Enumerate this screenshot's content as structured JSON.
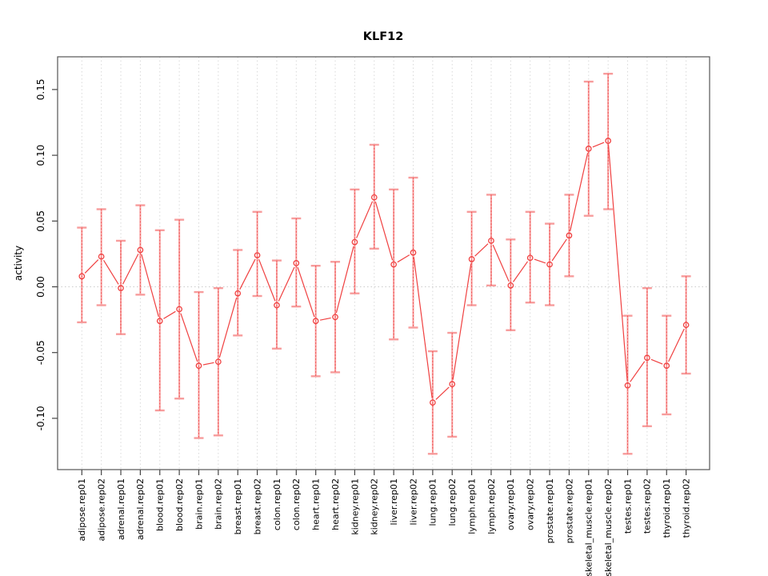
{
  "chart_data": {
    "type": "scatter",
    "subtype": "points-with-error-bars",
    "title": "KLF12",
    "xlabel": "",
    "ylabel": "activity",
    "ylim": [
      -0.139,
      0.175
    ],
    "yticks": [
      0.15,
      0.1,
      0.05,
      0.0,
      -0.05,
      -0.1
    ],
    "ytick_labels": [
      "0.15",
      "0.10",
      "0.05",
      "0.00",
      "-0.05",
      "-0.10"
    ],
    "grid": "vertical dotted gridline at every category; horizontal dotted line at zero only",
    "legend": "none",
    "categories": [
      "adipose.rep01",
      "adipose.rep02",
      "adrenal.rep01",
      "adrenal.rep02",
      "blood.rep01",
      "blood.rep02",
      "brain.rep01",
      "brain.rep02",
      "breast.rep01",
      "breast.rep02",
      "colon.rep01",
      "colon.rep02",
      "heart.rep01",
      "heart.rep02",
      "kidney.rep01",
      "kidney.rep02",
      "liver.rep01",
      "liver.rep02",
      "lung.rep01",
      "lung.rep02",
      "lymph.rep01",
      "lymph.rep02",
      "ovary.rep01",
      "ovary.rep02",
      "prostate.rep01",
      "prostate.rep02",
      "skeletal_muscle.rep01",
      "skeletal_muscle.rep02",
      "testes.rep01",
      "testes.rep02",
      "thyroid.rep01",
      "thyroid.rep02"
    ],
    "values": [
      0.008,
      0.023,
      -0.001,
      0.028,
      -0.026,
      -0.017,
      -0.06,
      -0.057,
      -0.005,
      0.024,
      -0.014,
      0.018,
      -0.026,
      -0.023,
      0.034,
      0.068,
      0.017,
      0.026,
      -0.088,
      -0.074,
      0.021,
      0.035,
      0.001,
      0.022,
      0.017,
      0.039,
      0.105,
      0.111,
      -0.075,
      -0.054,
      -0.06,
      -0.029
    ],
    "error_low": [
      -0.027,
      -0.014,
      -0.036,
      -0.006,
      -0.094,
      -0.085,
      -0.115,
      -0.113,
      -0.037,
      -0.007,
      -0.047,
      -0.015,
      -0.068,
      -0.065,
      -0.005,
      0.029,
      -0.04,
      -0.031,
      -0.127,
      -0.114,
      -0.014,
      0.001,
      -0.033,
      -0.012,
      -0.014,
      0.008,
      0.054,
      0.059,
      -0.127,
      -0.106,
      -0.097,
      -0.066
    ],
    "error_high": [
      0.045,
      0.059,
      0.035,
      0.062,
      0.043,
      0.051,
      -0.004,
      -0.001,
      0.028,
      0.057,
      0.02,
      0.052,
      0.016,
      0.019,
      0.074,
      0.108,
      0.074,
      0.083,
      -0.049,
      -0.035,
      0.057,
      0.07,
      0.036,
      0.057,
      0.048,
      0.07,
      0.156,
      0.162,
      -0.022,
      -0.001,
      -0.022,
      0.008
    ],
    "colors": {
      "point_and_line": "#f04040",
      "error_bar": "#f79c9c",
      "grid_line": "#d9d9d9",
      "zero_line": "#cbcbcb",
      "axis_frame": "#555555",
      "tick_mark": "#444444",
      "text": "#000000",
      "background": "#ffffff"
    }
  }
}
